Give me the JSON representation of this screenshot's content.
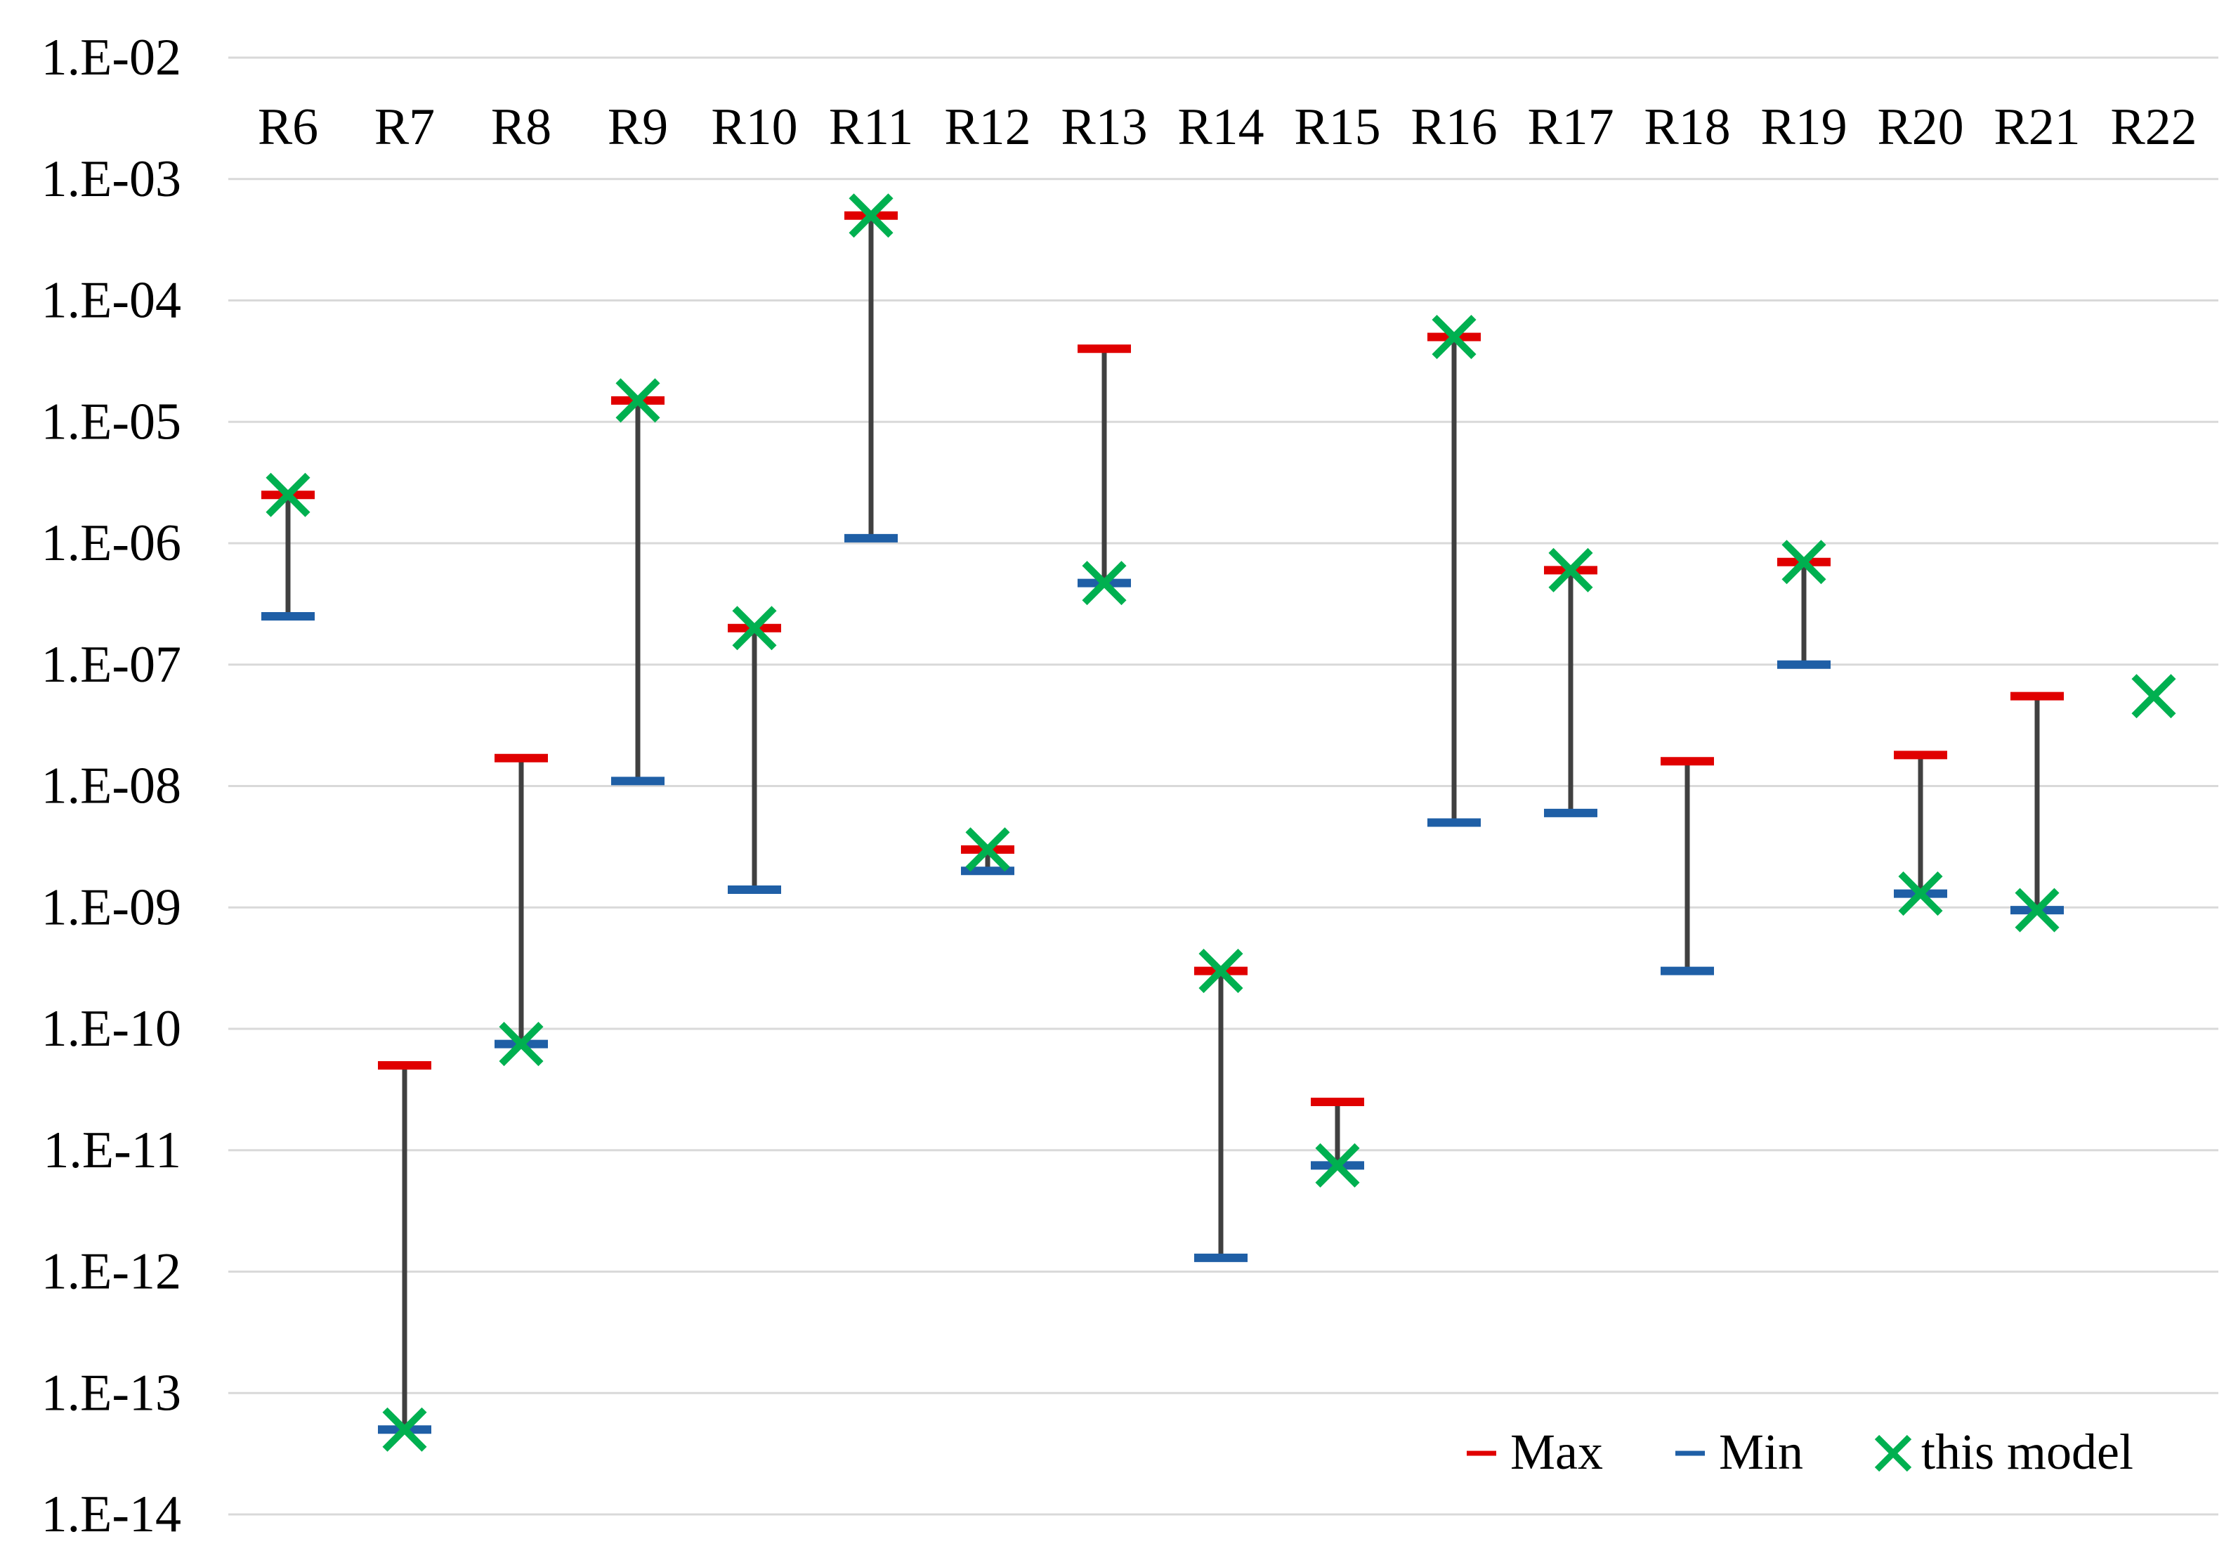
{
  "chart_data": {
    "type": "scatter",
    "y_scale": "log",
    "ylim": [
      1e-14,
      0.01
    ],
    "y_ticks": [
      "1.E-02",
      "1.E-03",
      "1.E-04",
      "1.E-05",
      "1.E-06",
      "1.E-07",
      "1.E-08",
      "1.E-09",
      "1.E-10",
      "1.E-11",
      "1.E-12",
      "1.E-13",
      "1.E-14"
    ],
    "y_tick_values": [
      0.01,
      0.001,
      0.0001,
      1e-05,
      1e-06,
      1e-07,
      1e-08,
      1e-09,
      1e-10,
      1e-11,
      1e-12,
      1e-13,
      1e-14
    ],
    "grid": true,
    "categories": [
      "R6",
      "R7",
      "R8",
      "R9",
      "R10",
      "R11",
      "R12",
      "R13",
      "R14",
      "R15",
      "R16",
      "R17",
      "R18",
      "R19",
      "R20",
      "R21",
      "R22"
    ],
    "series": [
      {
        "name": "Max",
        "values": [
          2.5e-06,
          5e-11,
          1.7e-08,
          1.5e-05,
          2e-07,
          0.0005,
          3e-09,
          4e-05,
          3e-10,
          2.5e-11,
          5e-05,
          6e-07,
          1.6e-08,
          7e-07,
          1.8e-08,
          5.5e-08,
          null
        ]
      },
      {
        "name": "Min",
        "values": [
          2.5e-07,
          5e-14,
          7.5e-11,
          1.1e-08,
          1.4e-09,
          1.1e-06,
          2e-09,
          4.7e-07,
          1.3e-12,
          7.5e-12,
          5e-09,
          6e-09,
          3e-10,
          1e-07,
          1.3e-09,
          9.5e-10,
          null
        ]
      },
      {
        "name": "this model",
        "values": [
          2.5e-06,
          5e-14,
          7.5e-11,
          1.5e-05,
          2e-07,
          0.0005,
          3e-09,
          4.7e-07,
          3e-10,
          7.5e-12,
          5e-05,
          6e-07,
          null,
          7e-07,
          1.3e-09,
          9.5e-10,
          5.5e-08
        ]
      }
    ],
    "legend": {
      "position": "bottom-right",
      "items": [
        "Max",
        "Min",
        "this model"
      ]
    },
    "colors": {
      "max": "#e00000",
      "min": "#1f5fa6",
      "model": "#00b050",
      "range_line": "#404040",
      "grid": "#d9d9d9"
    }
  }
}
